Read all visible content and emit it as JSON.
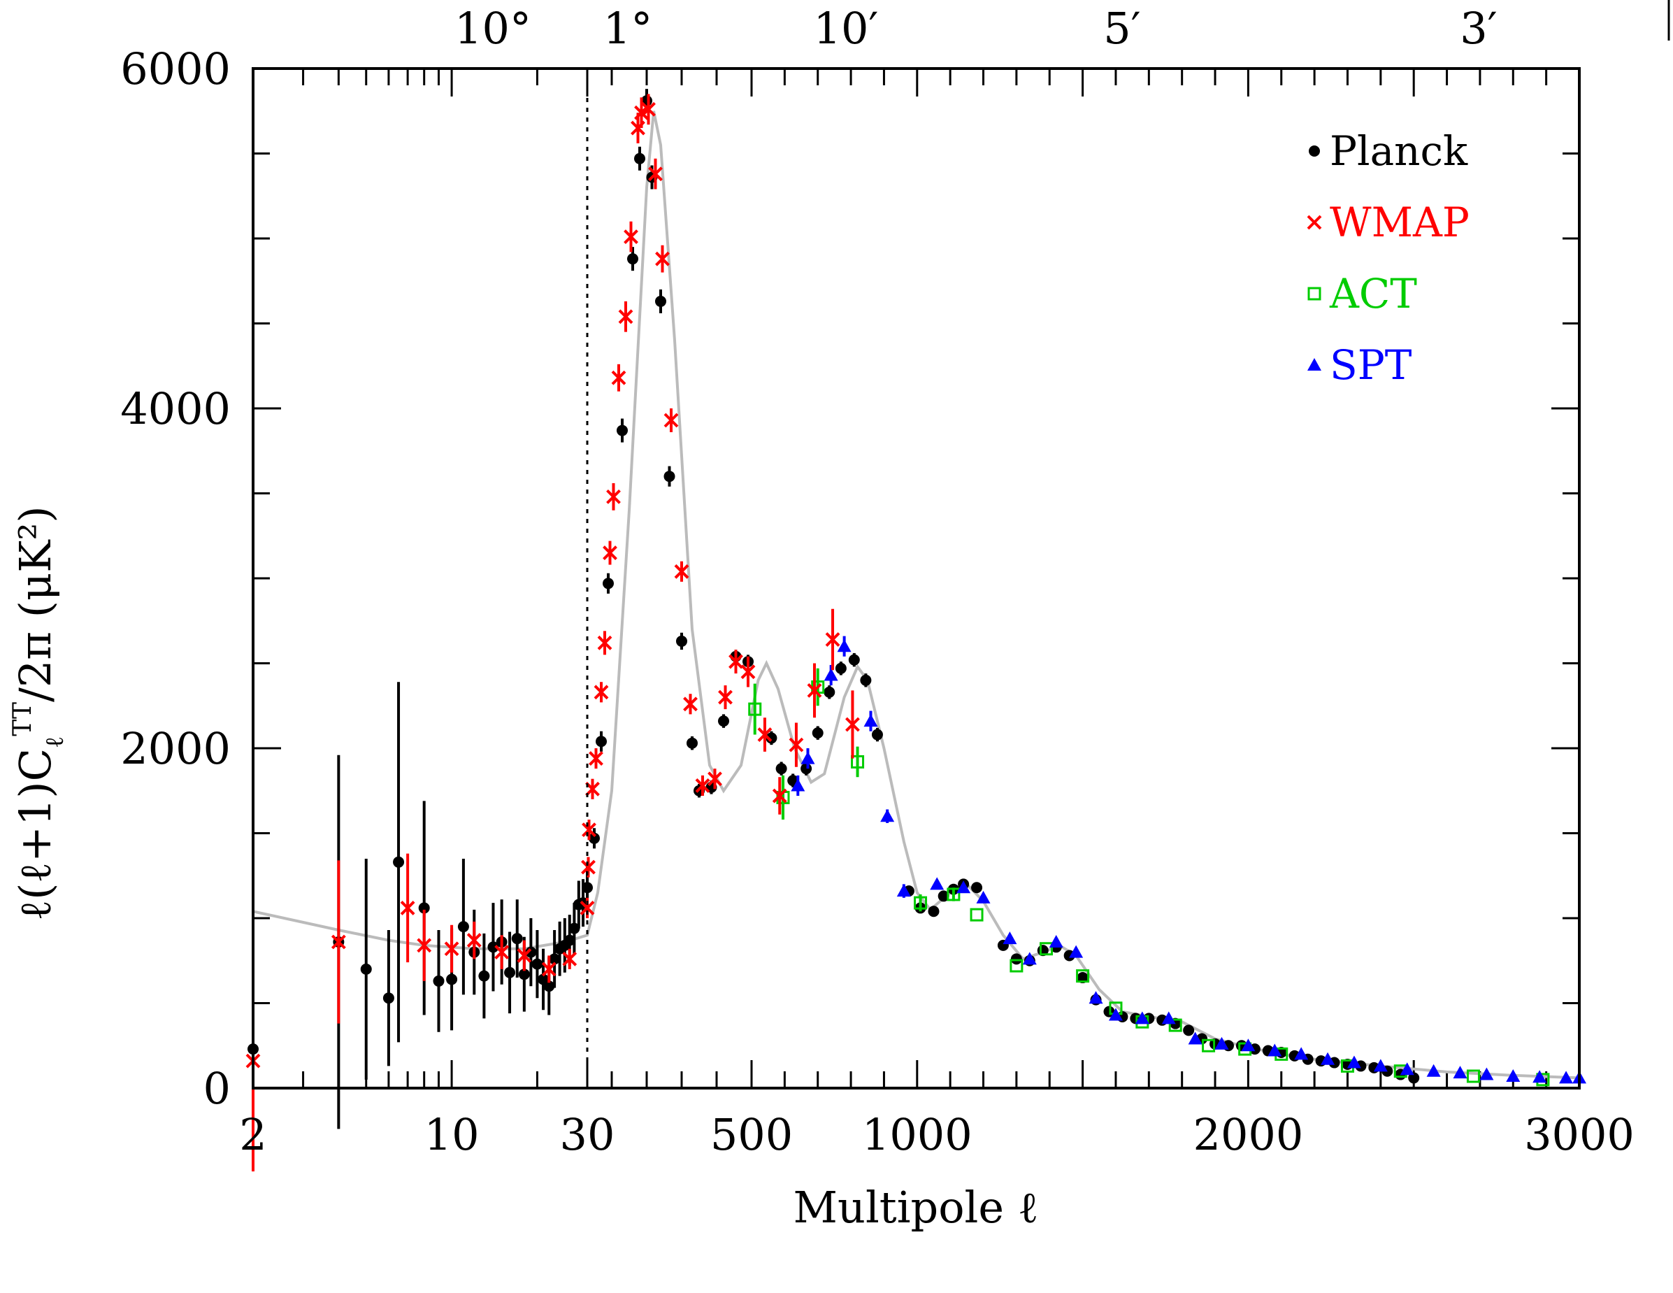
{
  "chart_data": {
    "type": "scatter",
    "title": "",
    "xlabel": "Multipole ℓ",
    "ylabel": "ℓ(ℓ+1)C_ℓ^TT/2π (μK²)",
    "ylabel_prefix": "ℓ(ℓ+1)C",
    "ylabel_sub": "ℓ",
    "ylabel_sup": "TT",
    "ylabel_suffix": "/2π (μK²)",
    "ylim": [
      0,
      6000
    ],
    "yticks": [
      0,
      2000,
      4000,
      6000
    ],
    "xlim_log": [
      2,
      30
    ],
    "xlim_linear": [
      30,
      3000
    ],
    "xticks": [
      {
        "label": "2",
        "value": 2
      },
      {
        "label": "10",
        "value": 10
      },
      {
        "label": "30",
        "value": 30
      },
      {
        "label": "500",
        "value": 500
      },
      {
        "label": "1000",
        "value": 1000
      },
      {
        "label": "2000",
        "value": 2000
      },
      {
        "label": "3000",
        "value": 3000
      }
    ],
    "top_axis_label_angular": [
      {
        "label": "10°",
        "ell": 18
      },
      {
        "label": "1°",
        "ell": 180
      },
      {
        "label": "10′",
        "ell": 1080
      },
      {
        "label": "5′",
        "ell": 2160
      },
      {
        "label": "3′",
        "ell": 3600
      }
    ],
    "divider_at": 30,
    "legend": [
      {
        "name": "Planck",
        "marker": "•",
        "color": "#000000"
      },
      {
        "name": "WMAP",
        "marker": "×",
        "color": "#ff0000"
      },
      {
        "name": "ACT",
        "marker": "□",
        "color": "#00cc00"
      },
      {
        "name": "SPT",
        "marker": "▲",
        "color": "#0000ff"
      }
    ],
    "model_curve": [
      [
        2,
        1040
      ],
      [
        4,
        930
      ],
      [
        6,
        870
      ],
      [
        8,
        840
      ],
      [
        12,
        820
      ],
      [
        18,
        820
      ],
      [
        25,
        860
      ],
      [
        30,
        900
      ],
      [
        60,
        1150
      ],
      [
        100,
        1750
      ],
      [
        150,
        3400
      ],
      [
        200,
        5300
      ],
      [
        220,
        5750
      ],
      [
        240,
        5550
      ],
      [
        280,
        4400
      ],
      [
        330,
        2700
      ],
      [
        380,
        1900
      ],
      [
        420,
        1750
      ],
      [
        470,
        1900
      ],
      [
        520,
        2400
      ],
      [
        545,
        2500
      ],
      [
        580,
        2350
      ],
      [
        630,
        2000
      ],
      [
        680,
        1800
      ],
      [
        720,
        1850
      ],
      [
        780,
        2300
      ],
      [
        820,
        2480
      ],
      [
        850,
        2400
      ],
      [
        900,
        2000
      ],
      [
        960,
        1450
      ],
      [
        1000,
        1150
      ],
      [
        1040,
        1050
      ],
      [
        1100,
        1150
      ],
      [
        1150,
        1200
      ],
      [
        1200,
        1100
      ],
      [
        1260,
        900
      ],
      [
        1320,
        760
      ],
      [
        1380,
        800
      ],
      [
        1430,
        840
      ],
      [
        1480,
        780
      ],
      [
        1550,
        580
      ],
      [
        1620,
        450
      ],
      [
        1700,
        420
      ],
      [
        1800,
        390
      ],
      [
        1900,
        290
      ],
      [
        2000,
        240
      ],
      [
        2100,
        200
      ],
      [
        2200,
        170
      ],
      [
        2400,
        130
      ],
      [
        2600,
        95
      ],
      [
        2800,
        75
      ],
      [
        3000,
        60
      ]
    ],
    "series": [
      {
        "name": "Planck",
        "color": "#000000",
        "marker": "circle",
        "points": [
          [
            2,
            230,
            560
          ],
          [
            4,
            860,
            1100
          ],
          [
            5,
            700,
            650
          ],
          [
            6,
            530,
            400
          ],
          [
            6.5,
            1330,
            1060
          ],
          [
            8,
            1060,
            630
          ],
          [
            9,
            630,
            300
          ],
          [
            10,
            640,
            300
          ],
          [
            11,
            950,
            400
          ],
          [
            12,
            800,
            250
          ],
          [
            13,
            660,
            250
          ],
          [
            14,
            830,
            260
          ],
          [
            15,
            860,
            250
          ],
          [
            16,
            680,
            240
          ],
          [
            17,
            880,
            230
          ],
          [
            18,
            670,
            220
          ],
          [
            19,
            800,
            200
          ],
          [
            20,
            730,
            200
          ],
          [
            21,
            640,
            180
          ],
          [
            22,
            600,
            170
          ],
          [
            23,
            760,
            170
          ],
          [
            24,
            820,
            160
          ],
          [
            25,
            840,
            160
          ],
          [
            26,
            870,
            150
          ],
          [
            27,
            940,
            150
          ],
          [
            28,
            1080,
            140
          ],
          [
            29,
            1090,
            140
          ],
          [
            30,
            1180,
            140
          ],
          [
            50,
            1470,
            60
          ],
          [
            70,
            2040,
            60
          ],
          [
            90,
            2970,
            60
          ],
          [
            130,
            3870,
            70
          ],
          [
            160,
            4880,
            70
          ],
          [
            180,
            5470,
            70
          ],
          [
            200,
            5810,
            70
          ],
          [
            215,
            5360,
            70
          ],
          [
            240,
            4630,
            70
          ],
          [
            265,
            3600,
            60
          ],
          [
            300,
            2630,
            50
          ],
          [
            330,
            2030,
            40
          ],
          [
            350,
            1750,
            40
          ],
          [
            385,
            1770,
            40
          ],
          [
            420,
            2160,
            40
          ],
          [
            455,
            2540,
            40
          ],
          [
            490,
            2510,
            40
          ],
          [
            560,
            2060,
            40
          ],
          [
            590,
            1880,
            40
          ],
          [
            625,
            1810,
            40
          ],
          [
            665,
            1880,
            40
          ],
          [
            700,
            2090,
            40
          ],
          [
            735,
            2330,
            40
          ],
          [
            770,
            2470,
            40
          ],
          [
            810,
            2520,
            40
          ],
          [
            845,
            2400,
            40
          ],
          [
            880,
            2080,
            40
          ],
          [
            975,
            1160,
            30
          ],
          [
            1010,
            1060,
            30
          ],
          [
            1050,
            1040,
            30
          ],
          [
            1080,
            1130,
            30
          ],
          [
            1110,
            1170,
            30
          ],
          [
            1140,
            1200,
            30
          ],
          [
            1180,
            1180,
            30
          ],
          [
            1260,
            840,
            30
          ],
          [
            1300,
            760,
            30
          ],
          [
            1340,
            750,
            30
          ],
          [
            1380,
            810,
            30
          ],
          [
            1420,
            830,
            30
          ],
          [
            1460,
            780,
            30
          ],
          [
            1500,
            650,
            30
          ],
          [
            1540,
            520,
            30
          ],
          [
            1580,
            450,
            30
          ],
          [
            1620,
            420,
            30
          ],
          [
            1660,
            410,
            30
          ],
          [
            1700,
            410,
            30
          ],
          [
            1740,
            400,
            30
          ],
          [
            1780,
            380,
            30
          ],
          [
            1820,
            340,
            30
          ],
          [
            1860,
            290,
            30
          ],
          [
            1900,
            260,
            30
          ],
          [
            1940,
            250,
            30
          ],
          [
            1980,
            250,
            30
          ],
          [
            2020,
            230,
            30
          ],
          [
            2060,
            220,
            30
          ],
          [
            2100,
            210,
            30
          ],
          [
            2140,
            190,
            30
          ],
          [
            2180,
            170,
            30
          ],
          [
            2220,
            160,
            30
          ],
          [
            2260,
            150,
            30
          ],
          [
            2300,
            140,
            30
          ],
          [
            2340,
            130,
            30
          ],
          [
            2380,
            120,
            30
          ],
          [
            2420,
            100,
            30
          ],
          [
            2460,
            80,
            30
          ],
          [
            2500,
            60,
            30
          ]
        ]
      },
      {
        "name": "WMAP",
        "color": "#ff0000",
        "marker": "cross",
        "points": [
          [
            2,
            160,
            650
          ],
          [
            4,
            860,
            480
          ],
          [
            7,
            1060,
            320
          ],
          [
            8,
            840,
            210
          ],
          [
            10,
            820,
            140
          ],
          [
            12,
            870,
            110
          ],
          [
            15,
            800,
            100
          ],
          [
            18,
            780,
            90
          ],
          [
            22,
            700,
            80
          ],
          [
            26,
            760,
            60
          ],
          [
            30,
            1060,
            60
          ],
          [
            33,
            1300,
            60
          ],
          [
            35,
            1520,
            60
          ],
          [
            45,
            1760,
            60
          ],
          [
            55,
            1940,
            60
          ],
          [
            70,
            2330,
            60
          ],
          [
            80,
            2620,
            70
          ],
          [
            95,
            3150,
            70
          ],
          [
            105,
            3480,
            80
          ],
          [
            120,
            4180,
            80
          ],
          [
            140,
            4540,
            90
          ],
          [
            155,
            5010,
            90
          ],
          [
            175,
            5650,
            90
          ],
          [
            185,
            5740,
            90
          ],
          [
            205,
            5760,
            90
          ],
          [
            225,
            5380,
            90
          ],
          [
            245,
            4880,
            80
          ],
          [
            270,
            3930,
            70
          ],
          [
            300,
            3040,
            60
          ],
          [
            325,
            2260,
            60
          ],
          [
            360,
            1780,
            60
          ],
          [
            395,
            1820,
            60
          ],
          [
            425,
            2300,
            70
          ],
          [
            455,
            2510,
            70
          ],
          [
            490,
            2450,
            90
          ],
          [
            540,
            2080,
            100
          ],
          [
            585,
            1720,
            110
          ],
          [
            635,
            2020,
            130
          ],
          [
            690,
            2340,
            160
          ],
          [
            745,
            2640,
            180
          ],
          [
            805,
            2140,
            200
          ]
        ]
      },
      {
        "name": "ACT",
        "color": "#00cc00",
        "marker": "square",
        "points": [
          [
            510,
            2230,
            150
          ],
          [
            595,
            1710,
            130
          ],
          [
            700,
            2360,
            110
          ],
          [
            820,
            1920,
            90
          ],
          [
            1010,
            1090,
            50
          ],
          [
            1110,
            1140,
            40
          ],
          [
            1180,
            1020,
            30
          ],
          [
            1300,
            720,
            30
          ],
          [
            1390,
            820,
            30
          ],
          [
            1500,
            660,
            20
          ],
          [
            1600,
            470,
            20
          ],
          [
            1680,
            390,
            20
          ],
          [
            1780,
            370,
            20
          ],
          [
            1880,
            250,
            20
          ],
          [
            1990,
            230,
            20
          ],
          [
            2100,
            200,
            20
          ],
          [
            2300,
            130,
            20
          ],
          [
            2460,
            100,
            20
          ],
          [
            2680,
            70,
            20
          ],
          [
            2890,
            50,
            20
          ]
        ]
      },
      {
        "name": "SPT",
        "color": "#0000ff",
        "marker": "triangle",
        "points": [
          [
            640,
            1780,
            60
          ],
          [
            670,
            1940,
            60
          ],
          [
            740,
            2430,
            60
          ],
          [
            780,
            2600,
            60
          ],
          [
            860,
            2160,
            60
          ],
          [
            910,
            1600,
            40
          ],
          [
            960,
            1160,
            40
          ],
          [
            1060,
            1200,
            30
          ],
          [
            1140,
            1180,
            30
          ],
          [
            1200,
            1120,
            30
          ],
          [
            1280,
            880,
            30
          ],
          [
            1340,
            760,
            30
          ],
          [
            1420,
            860,
            30
          ],
          [
            1480,
            800,
            30
          ],
          [
            1540,
            530,
            20
          ],
          [
            1600,
            430,
            20
          ],
          [
            1680,
            410,
            20
          ],
          [
            1760,
            410,
            20
          ],
          [
            1840,
            290,
            20
          ],
          [
            1920,
            260,
            20
          ],
          [
            2000,
            250,
            20
          ],
          [
            2080,
            220,
            20
          ],
          [
            2160,
            200,
            20
          ],
          [
            2240,
            170,
            20
          ],
          [
            2320,
            150,
            20
          ],
          [
            2400,
            130,
            20
          ],
          [
            2480,
            110,
            20
          ],
          [
            2560,
            100,
            20
          ],
          [
            2640,
            90,
            20
          ],
          [
            2720,
            80,
            20
          ],
          [
            2800,
            70,
            20
          ],
          [
            2880,
            65,
            20
          ],
          [
            2960,
            60,
            20
          ],
          [
            3000,
            60,
            20
          ]
        ]
      }
    ]
  }
}
